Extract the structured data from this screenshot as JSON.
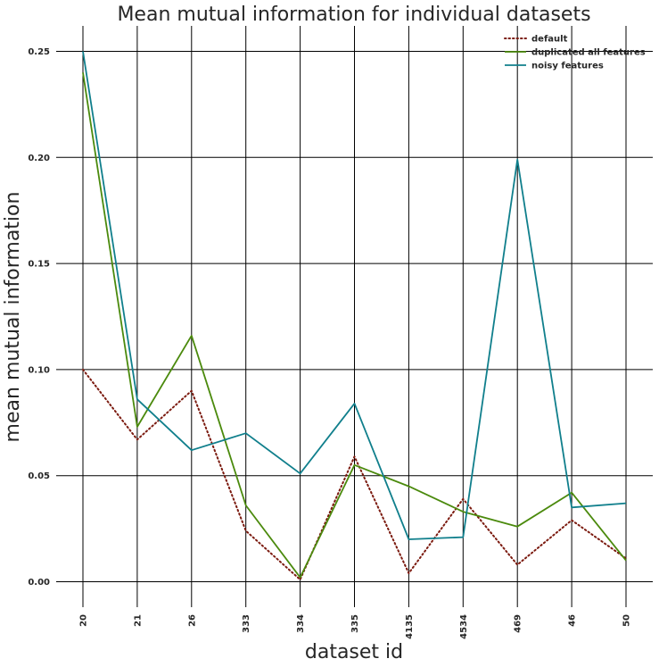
{
  "chart_data": {
    "type": "line",
    "title": "Mean mutual information for individual datasets",
    "xlabel": "dataset id",
    "ylabel": "mean mutual information",
    "categories": [
      "20",
      "21",
      "26",
      "333",
      "334",
      "335",
      "4135",
      "4534",
      "469",
      "46",
      "50"
    ],
    "yticks": [
      "0.00",
      "0.05",
      "0.10",
      "0.15",
      "0.20",
      "0.25"
    ],
    "ylim": [
      -0.012,
      0.262
    ],
    "grid": true,
    "legend_position": "top-right",
    "series": [
      {
        "name": "default",
        "color": "#7b1a0f",
        "dash": "dotted",
        "values": [
          0.1,
          0.067,
          0.09,
          0.024,
          0.001,
          0.059,
          0.004,
          0.039,
          0.008,
          0.029,
          0.011
        ]
      },
      {
        "name": "duplicated all features",
        "color": "#4b8a0d",
        "dash": "solid",
        "values": [
          0.24,
          0.073,
          0.116,
          0.036,
          0.002,
          0.055,
          0.045,
          0.033,
          0.026,
          0.042,
          0.01
        ]
      },
      {
        "name": "noisy features",
        "color": "#107f8c",
        "dash": "solid",
        "values": [
          0.25,
          0.086,
          0.062,
          0.07,
          0.051,
          0.084,
          0.02,
          0.021,
          0.199,
          0.035,
          0.037
        ]
      }
    ]
  }
}
